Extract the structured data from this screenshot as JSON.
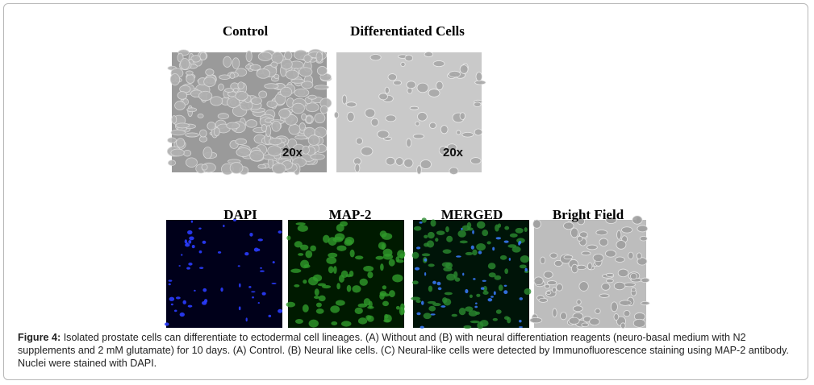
{
  "figure": {
    "panel_a": {
      "labels": [
        "Control",
        "Differentiated Cells"
      ],
      "magnifications": [
        "20x",
        "20x"
      ]
    },
    "panel_c": {
      "labels": [
        "DAPI",
        "MAP-2",
        "MERGED",
        "Bright Field"
      ]
    },
    "caption": {
      "label": "Figure 4:",
      "text": "Isolated prostate cells can differentiate to ectodermal cell lineages. (A) Without and (B) with neural differentiation reagents (neuro-basal medium with N2 supplements and 2 mM glutamate) for 10 days. (A) Control. (B) Neural like cells. (C) Neural-like cells were detected by Immunofluorescence staining using MAP-2 antibody. Nuclei were stained with DAPI."
    }
  }
}
